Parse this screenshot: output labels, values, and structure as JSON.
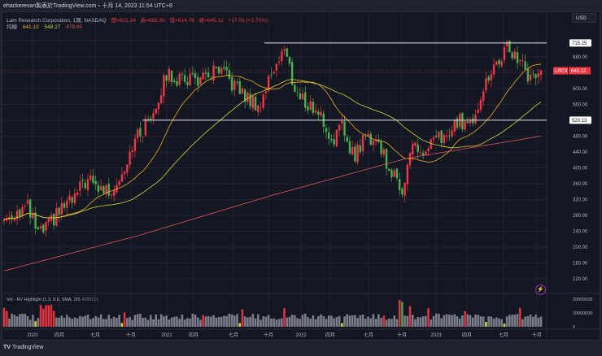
{
  "header": {
    "watermark_line": "ehackerevan製表於TradingView.com・十月 14, 2023 11:54 UTC+8"
  },
  "legend": {
    "symbol": "Lam Research Corporation, 1周, NASDAQ",
    "open": "開=621.24",
    "high": "高=665.00",
    "low": "低=614.76",
    "close": "收=645.12",
    "change": "+17.01 (+2.71%)",
    "ma_label": "均線",
    "ma_values": [
      "641.10",
      "548.27",
      "479.95"
    ]
  },
  "price_axis": {
    "currency": "USD",
    "ticks": [
      "680.00",
      "600.00",
      "560.00",
      "480.00",
      "440.00",
      "400.00",
      "360.00",
      "320.00",
      "280.00",
      "240.00",
      "200.00",
      "160.00",
      "120.00"
    ],
    "symbol_tag": "LRCX",
    "last_price": "645.12",
    "hlines": [
      "715.25",
      "520.13"
    ]
  },
  "time_axis": {
    "ticks": [
      "2020",
      "四月",
      "七月",
      "十月",
      "2021",
      "四月",
      "七月",
      "十月",
      "2022",
      "四月",
      "七月",
      "十月",
      "2023",
      "四月",
      "七月",
      "十月"
    ]
  },
  "volume": {
    "legend": "Vol · RV Highlight (1.3, 0.6, SMA, 20)",
    "value": "4588211",
    "ticks": [
      "20000000",
      "10000000",
      "0"
    ]
  },
  "footer": {
    "brand": "TradingView",
    "logo": "TV"
  },
  "colors": {
    "up": "#f23645",
    "down": "#4caf50",
    "ma1": "#f5a623",
    "ma2": "#d4d43a",
    "ma3": "#e0535a",
    "vol_normal": "#868993",
    "vol_low": "#f0e040",
    "bg": "#131722"
  },
  "chart_data": {
    "type": "candlestick",
    "interval": "1W",
    "monthly_closes_from_2019_12": [
      270,
      290,
      300,
      230,
      260,
      300,
      320,
      370,
      350,
      340,
      380,
      460,
      500,
      560,
      640,
      620,
      630,
      620,
      640,
      630,
      600,
      570,
      560,
      650,
      700,
      590,
      560,
      540,
      470,
      500,
      430,
      480,
      470,
      400,
      340,
      460,
      430,
      470,
      480,
      520,
      510,
      600,
      650,
      700,
      680,
      625,
      645
    ],
    "ma200_points": [
      140,
      229,
      331,
      424,
      480
    ],
    "hlines": [
      715.25,
      520.13
    ],
    "last": 645.12,
    "ylim": [
      110,
      730
    ]
  }
}
